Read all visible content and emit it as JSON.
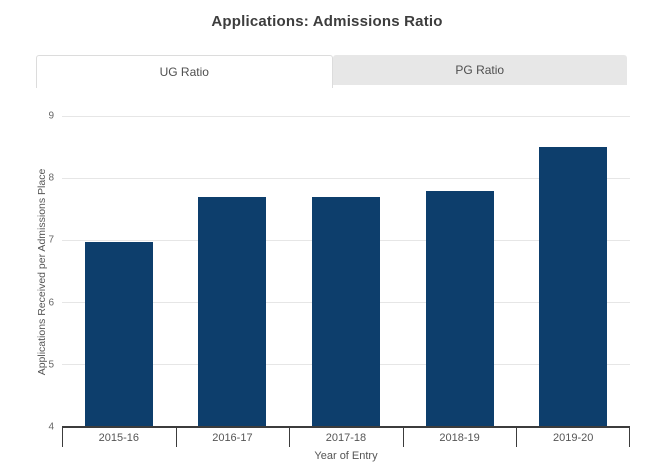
{
  "page": {
    "title": "Applications: Admissions Ratio"
  },
  "tabs": [
    {
      "label": "UG Ratio",
      "active": true
    },
    {
      "label": "PG Ratio",
      "active": false
    }
  ],
  "chart_data": {
    "type": "bar",
    "title": "Applications: Admissions Ratio",
    "categories": [
      "2015-16",
      "2016-17",
      "2017-18",
      "2018-19",
      "2019-20"
    ],
    "values": [
      6.97,
      7.7,
      7.7,
      7.8,
      8.5
    ],
    "xlabel": "Year of Entry",
    "ylabel": "Applications Received per Admissions Place",
    "ylim": [
      4,
      9
    ],
    "ytick_step": 1,
    "grid": true,
    "legend": "none",
    "bar_color": "#0d3e6c",
    "axis_line_color": "#3c3c3c",
    "gridline_color": "#e6e6e6"
  }
}
